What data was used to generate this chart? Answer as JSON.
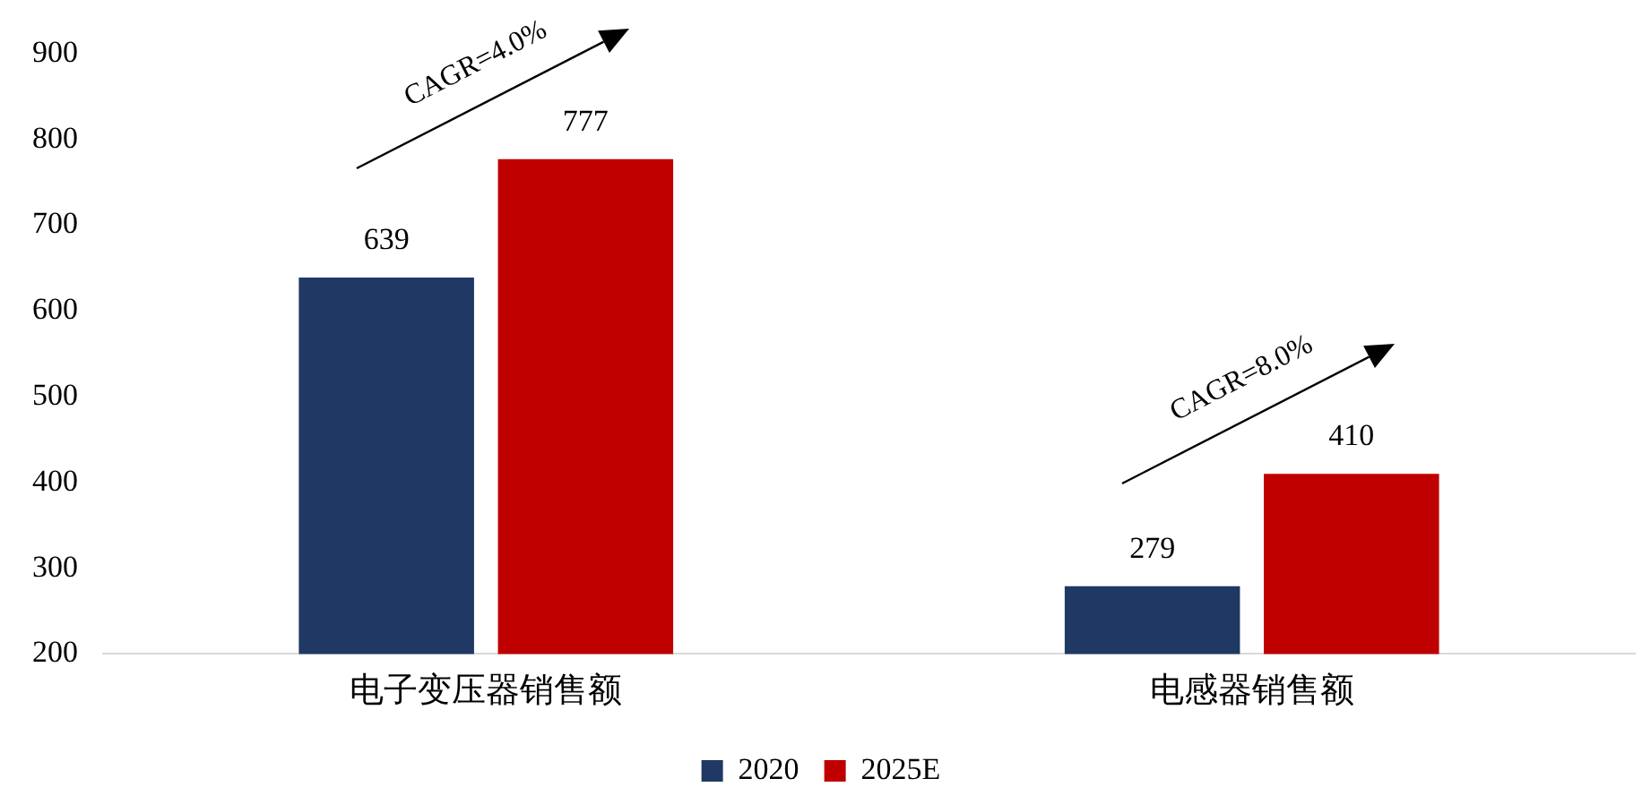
{
  "chart_data": {
    "type": "bar",
    "categories": [
      "电子变压器销售额",
      "电感器销售额"
    ],
    "series": [
      {
        "name": "2020",
        "color": "#1f3864",
        "values": [
          639,
          279
        ]
      },
      {
        "name": "2025E",
        "color": "#c00000",
        "values": [
          777,
          410
        ]
      }
    ],
    "ylim": [
      200,
      900
    ],
    "yticks": [
      200,
      300,
      400,
      500,
      600,
      700,
      800,
      900
    ],
    "grid": false,
    "legend": "bottom",
    "data_labels": true,
    "annotations": [
      "CAGR=4.0%",
      "CAGR=8.0%"
    ]
  }
}
